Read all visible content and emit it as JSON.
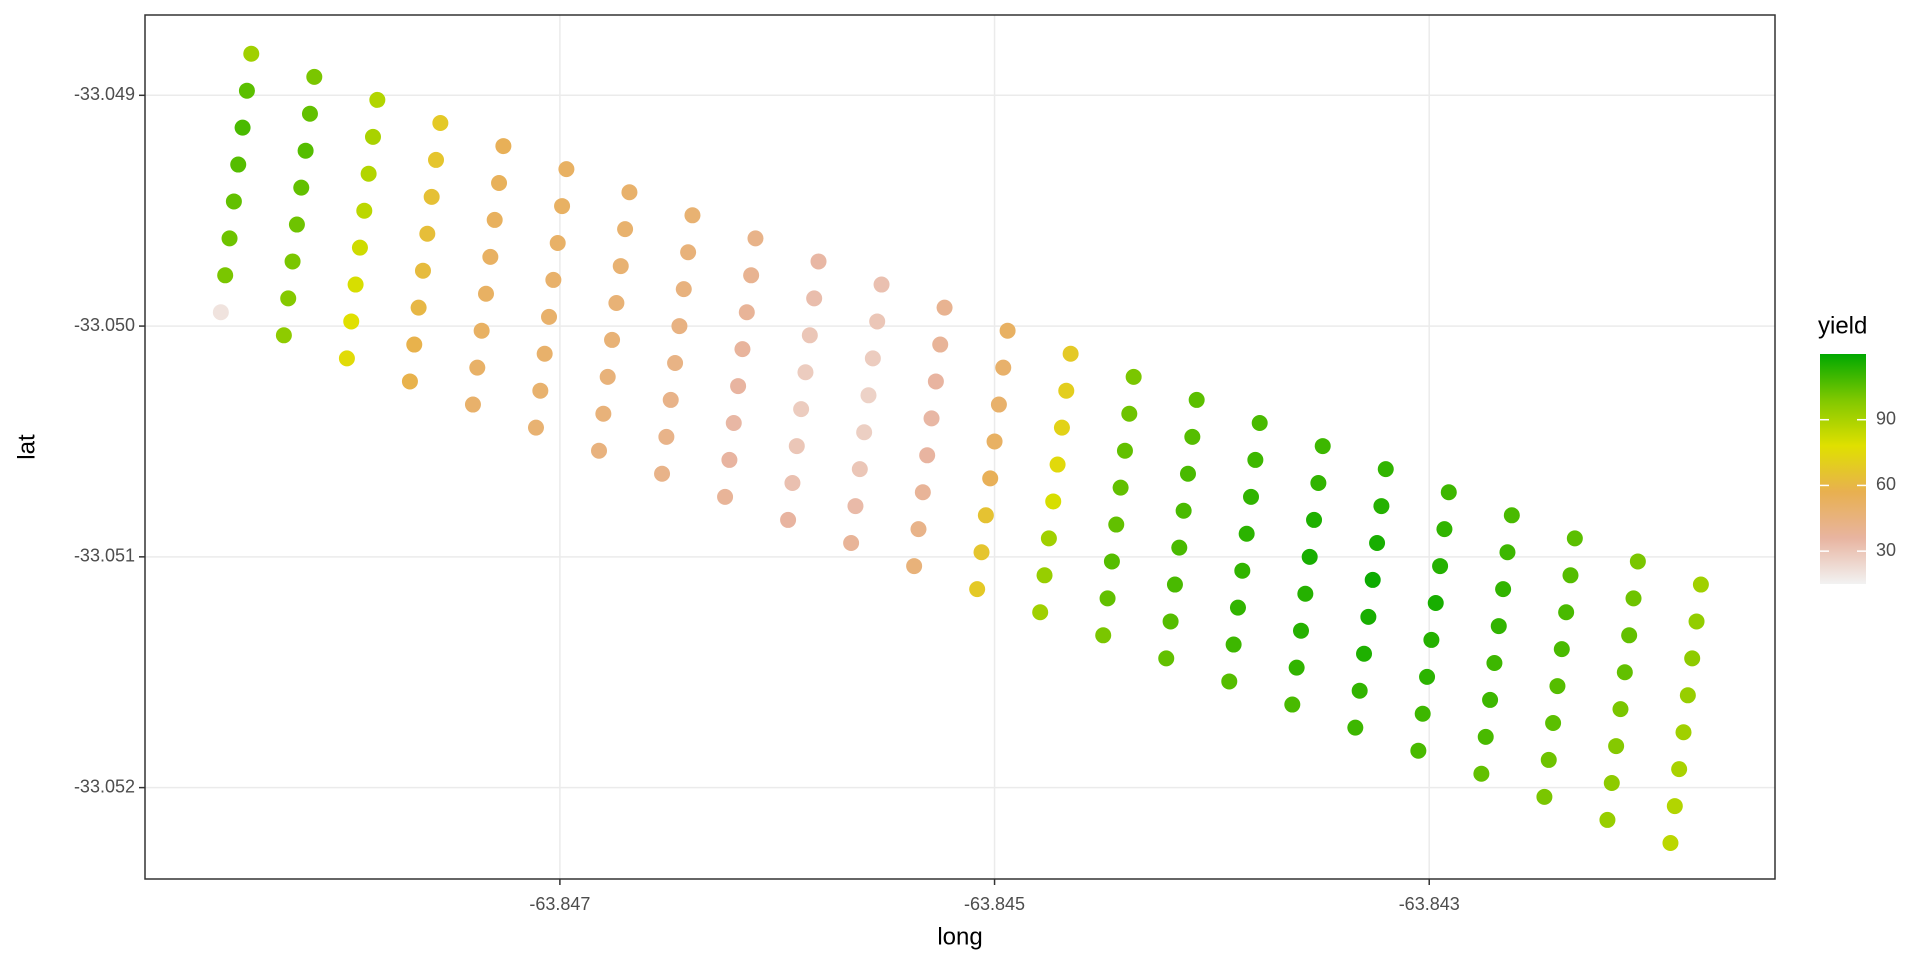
{
  "chart_data": {
    "type": "scatter",
    "x_label": "long",
    "y_label": "lat",
    "legend_title": "yield",
    "xlim": [
      -63.848909,
      -63.841409
    ],
    "ylim": [
      -33.052396,
      -33.048652
    ],
    "xticks": [
      -63.847,
      -63.845,
      -63.843
    ],
    "yticks": [
      -33.049,
      -33.05,
      -33.051,
      -33.052
    ],
    "grid": true,
    "color_scale": {
      "limits": [
        15,
        120
      ],
      "colors": [
        "#f2f2f2",
        "#e8b4a0",
        "#e8b050",
        "#e0e000",
        "#80c800",
        "#00a800"
      ],
      "ticks": [
        30,
        60,
        90
      ]
    },
    "x": [
      -63.84842,
      -63.84813,
      -63.84784,
      -63.84755,
      -63.84726,
      -63.84697,
      -63.84668,
      -63.84639,
      -63.8461,
      -63.84581,
      -63.84552,
      -63.84523,
      -63.84494,
      -63.84465,
      -63.84436,
      -63.84407,
      -63.84378,
      -63.84349,
      -63.8432,
      -63.84291,
      -63.84262,
      -63.84233,
      -63.84204,
      -63.84175,
      -63.84844,
      -63.84815,
      -63.84786,
      -63.84757,
      -63.84728,
      -63.84699,
      -63.8467,
      -63.84641,
      -63.84612,
      -63.84583,
      -63.84554,
      -63.84525,
      -63.84496,
      -63.84467,
      -63.84438,
      -63.84409,
      -63.8438,
      -63.84351,
      -63.84322,
      -63.84293,
      -63.84264,
      -63.84235,
      -63.84206,
      -63.84177,
      -63.84846,
      -63.84817,
      -63.84788,
      -63.84759,
      -63.8473,
      -63.84701,
      -63.84672,
      -63.84643,
      -63.84614,
      -63.84585,
      -63.84556,
      -63.84527,
      -63.84498,
      -63.84469,
      -63.8444,
      -63.84411,
      -63.84382,
      -63.84353,
      -63.84324,
      -63.84295,
      -63.84266,
      -63.84237,
      -63.84208,
      -63.84179,
      -63.84848,
      -63.84819,
      -63.8479,
      -63.84761,
      -63.84732,
      -63.84703,
      -63.84674,
      -63.84645,
      -63.84616,
      -63.84587,
      -63.84558,
      -63.84529,
      -63.845,
      -63.84471,
      -63.84442,
      -63.84413,
      -63.84384,
      -63.84355,
      -63.84326,
      -63.84297,
      -63.84268,
      -63.84239,
      -63.8421,
      -63.84181,
      -63.8485,
      -63.84821,
      -63.84792,
      -63.84763,
      -63.84734,
      -63.84705,
      -63.84676,
      -63.84647,
      -63.84618,
      -63.84589,
      -63.8456,
      -63.84531,
      -63.84502,
      -63.84473,
      -63.84444,
      -63.84415,
      -63.84386,
      -63.84357,
      -63.84328,
      -63.84299,
      -63.8427,
      -63.84241,
      -63.84212,
      -63.84183,
      -63.84852,
      -63.84823,
      -63.84794,
      -63.84765,
      -63.84736,
      -63.84707,
      -63.84678,
      -63.84649,
      -63.8462,
      -63.84591,
      -63.84562,
      -63.84533,
      -63.84504,
      -63.84475,
      -63.84446,
      -63.84417,
      -63.84388,
      -63.84359,
      -63.8433,
      -63.84301,
      -63.84272,
      -63.84243,
      -63.84214,
      -63.84185,
      -63.84854,
      -63.84825,
      -63.84796,
      -63.84767,
      -63.84738,
      -63.84709,
      -63.8468,
      -63.84651,
      -63.84622,
      -63.84593,
      -63.84564,
      -63.84535,
      -63.84506,
      -63.84477,
      -63.84448,
      -63.84419,
      -63.8439,
      -63.84361,
      -63.84332,
      -63.84303,
      -63.84274,
      -63.84245,
      -63.84216,
      -63.84187,
      -63.84856,
      -63.84827,
      -63.84798,
      -63.84769,
      -63.8474,
      -63.84711,
      -63.84682,
      -63.84653,
      -63.84624,
      -63.84595,
      -63.84566,
      -63.84537,
      -63.84508,
      -63.84479,
      -63.8445,
      -63.84421,
      -63.84392,
      -63.84363,
      -63.84334,
      -63.84305,
      -63.84276,
      -63.84247,
      -63.84218,
      -63.84189
    ],
    "y": [
      -33.04882,
      -33.04892,
      -33.04902,
      -33.04912,
      -33.04922,
      -33.04932,
      -33.04942,
      -33.04952,
      -33.04962,
      -33.04972,
      -33.04982,
      -33.04992,
      -33.05002,
      -33.05012,
      -33.05022,
      -33.05032,
      -33.05042,
      -33.05052,
      -33.05062,
      -33.05072,
      -33.05082,
      -33.05092,
      -33.05102,
      -33.05112,
      -33.04898,
      -33.04908,
      -33.04918,
      -33.04928,
      -33.04938,
      -33.04948,
      -33.04958,
      -33.04968,
      -33.04978,
      -33.04988,
      -33.04998,
      -33.05008,
      -33.05018,
      -33.05028,
      -33.05038,
      -33.05048,
      -33.05058,
      -33.05068,
      -33.05078,
      -33.05088,
      -33.05098,
      -33.05108,
      -33.05118,
      -33.05128,
      -33.04914,
      -33.04924,
      -33.04934,
      -33.04944,
      -33.04954,
      -33.04964,
      -33.04974,
      -33.04984,
      -33.04994,
      -33.05004,
      -33.05014,
      -33.05024,
      -33.05034,
      -33.05044,
      -33.05054,
      -33.05064,
      -33.05074,
      -33.05084,
      -33.05094,
      -33.05104,
      -33.05114,
      -33.05124,
      -33.05134,
      -33.05144,
      -33.0493,
      -33.0494,
      -33.0495,
      -33.0496,
      -33.0497,
      -33.0498,
      -33.0499,
      -33.05,
      -33.0501,
      -33.0502,
      -33.0503,
      -33.0504,
      -33.0505,
      -33.0506,
      -33.0507,
      -33.0508,
      -33.0509,
      -33.051,
      -33.0511,
      -33.0512,
      -33.0513,
      -33.0514,
      -33.0515,
      -33.0516,
      -33.04946,
      -33.04956,
      -33.04966,
      -33.04976,
      -33.04986,
      -33.04996,
      -33.05006,
      -33.05016,
      -33.05026,
      -33.05036,
      -33.05046,
      -33.05056,
      -33.05066,
      -33.05076,
      -33.05086,
      -33.05096,
      -33.05106,
      -33.05116,
      -33.05126,
      -33.05136,
      -33.05146,
      -33.05156,
      -33.05166,
      -33.05176,
      -33.04962,
      -33.04972,
      -33.04982,
      -33.04992,
      -33.05002,
      -33.05012,
      -33.05022,
      -33.05032,
      -33.05042,
      -33.05052,
      -33.05062,
      -33.05072,
      -33.05082,
      -33.05092,
      -33.05102,
      -33.05112,
      -33.05122,
      -33.05132,
      -33.05142,
      -33.05152,
      -33.05162,
      -33.05172,
      -33.05182,
      -33.05192,
      -33.04978,
      -33.04988,
      -33.04998,
      -33.05008,
      -33.05018,
      -33.05028,
      -33.05038,
      -33.05048,
      -33.05058,
      -33.05068,
      -33.05078,
      -33.05088,
      -33.05098,
      -33.05108,
      -33.05118,
      -33.05128,
      -33.05138,
      -33.05148,
      -33.05158,
      -33.05168,
      -33.05178,
      -33.05188,
      -33.05198,
      -33.05208,
      -33.04994,
      -33.05004,
      -33.05014,
      -33.05024,
      -33.05034,
      -33.05044,
      -33.05054,
      -33.05064,
      -33.05074,
      -33.05084,
      -33.05094,
      -33.05104,
      -33.05114,
      -33.05124,
      -33.05134,
      -33.05144,
      -33.05154,
      -33.05164,
      -33.05174,
      -33.05184,
      -33.05194,
      -33.05204,
      -33.05214,
      -33.05224
    ],
    "values": [
      92,
      100,
      88,
      68,
      55,
      52,
      50,
      48,
      42,
      35,
      32,
      40,
      52,
      68,
      100,
      105,
      108,
      110,
      112,
      110,
      108,
      105,
      100,
      92,
      105,
      104,
      90,
      66,
      54,
      52,
      49,
      46,
      40,
      33,
      30,
      38,
      50,
      70,
      102,
      106,
      110,
      112,
      114,
      112,
      110,
      106,
      102,
      95,
      108,
      106,
      88,
      64,
      53,
      51,
      48,
      45,
      38,
      30,
      28,
      36,
      50,
      72,
      104,
      108,
      112,
      115,
      116,
      114,
      112,
      108,
      104,
      96,
      106,
      104,
      86,
      63,
      52,
      50,
      47,
      44,
      37,
      28,
      26,
      35,
      52,
      75,
      104,
      108,
      113,
      116,
      118,
      116,
      112,
      108,
      104,
      94,
      104,
      102,
      82,
      62,
      52,
      50,
      47,
      43,
      36,
      28,
      27,
      36,
      55,
      80,
      104,
      108,
      112,
      114,
      116,
      114,
      110,
      106,
      100,
      92,
      102,
      100,
      80,
      60,
      52,
      50,
      46,
      42,
      35,
      30,
      30,
      38,
      65,
      92,
      106,
      108,
      112,
      114,
      115,
      113,
      110,
      105,
      98,
      90,
      100,
      98,
      78,
      58,
      51,
      49,
      46,
      42,
      36,
      32,
      34,
      42,
      66,
      94,
      104,
      106,
      110,
      112,
      112,
      110,
      108,
      102,
      96,
      88,
      20,
      96,
      76,
      58,
      50,
      48,
      45,
      42,
      38,
      36,
      38,
      46,
      68,
      92,
      100,
      104,
      106,
      108,
      110,
      108,
      104,
      100,
      94,
      86
    ]
  }
}
